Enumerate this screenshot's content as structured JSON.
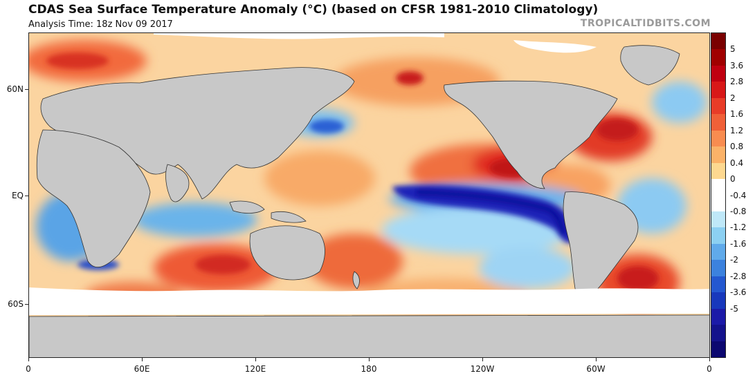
{
  "header": {
    "title": "CDAS Sea Surface Temperature Anomaly (°C) (based on CFSR 1981-2010 Climatology)",
    "analysis_time": "Analysis Time: 18z Nov 09 2017",
    "brand": "TROPICALTIDBITS.COM"
  },
  "map": {
    "lat_labels": [
      "60N",
      "EQ",
      "60S"
    ],
    "lon_labels": [
      "0",
      "60E",
      "120E",
      "180",
      "120W",
      "60W",
      "0"
    ],
    "land_color": "#c8c8c8",
    "ice_color": "#ffffff"
  },
  "colorbar": {
    "labels": [
      "5",
      "3.6",
      "2.8",
      "2",
      "1.6",
      "1.2",
      "0.8",
      "0.4",
      "0",
      "-0.4",
      "-0.8",
      "-1.2",
      "-1.6",
      "-2",
      "-2.8",
      "-3.6",
      "-5"
    ],
    "colors": [
      "#7a0000",
      "#a00000",
      "#c00010",
      "#d81818",
      "#e83c28",
      "#f06038",
      "#f88c50",
      "#fbb268",
      "#fdd890",
      "#ffffff",
      "#ffffff",
      "#bfe8f8",
      "#8cd0f2",
      "#60aaea",
      "#3c82de",
      "#2458d0",
      "#1838bc",
      "#1c1aa8",
      "#14128c",
      "#0c0870"
    ]
  }
}
